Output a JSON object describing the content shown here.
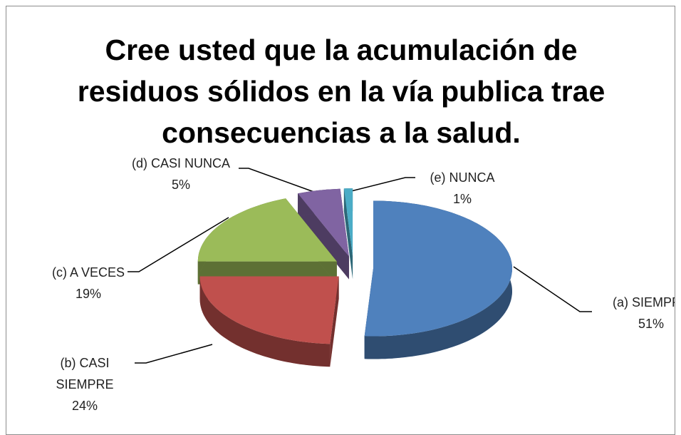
{
  "chart_data": {
    "type": "pie",
    "title": "Cree usted que la acumulación de residuos sólidos en la vía publica trae consecuencias a la salud.",
    "categories": [
      "(a) SIEMPRE",
      "(b) CASI SIEMPRE",
      "(c) A VECES",
      "(d) CASI NUNCA",
      "(e) NUNCA"
    ],
    "values": [
      51,
      24,
      19,
      5,
      1
    ],
    "value_labels": [
      "51%",
      "24%",
      "19%",
      "5%",
      "1%"
    ],
    "colors": [
      "#4f81bd",
      "#c0504d",
      "#9bbb59",
      "#8064a2",
      "#4bacc6"
    ]
  }
}
